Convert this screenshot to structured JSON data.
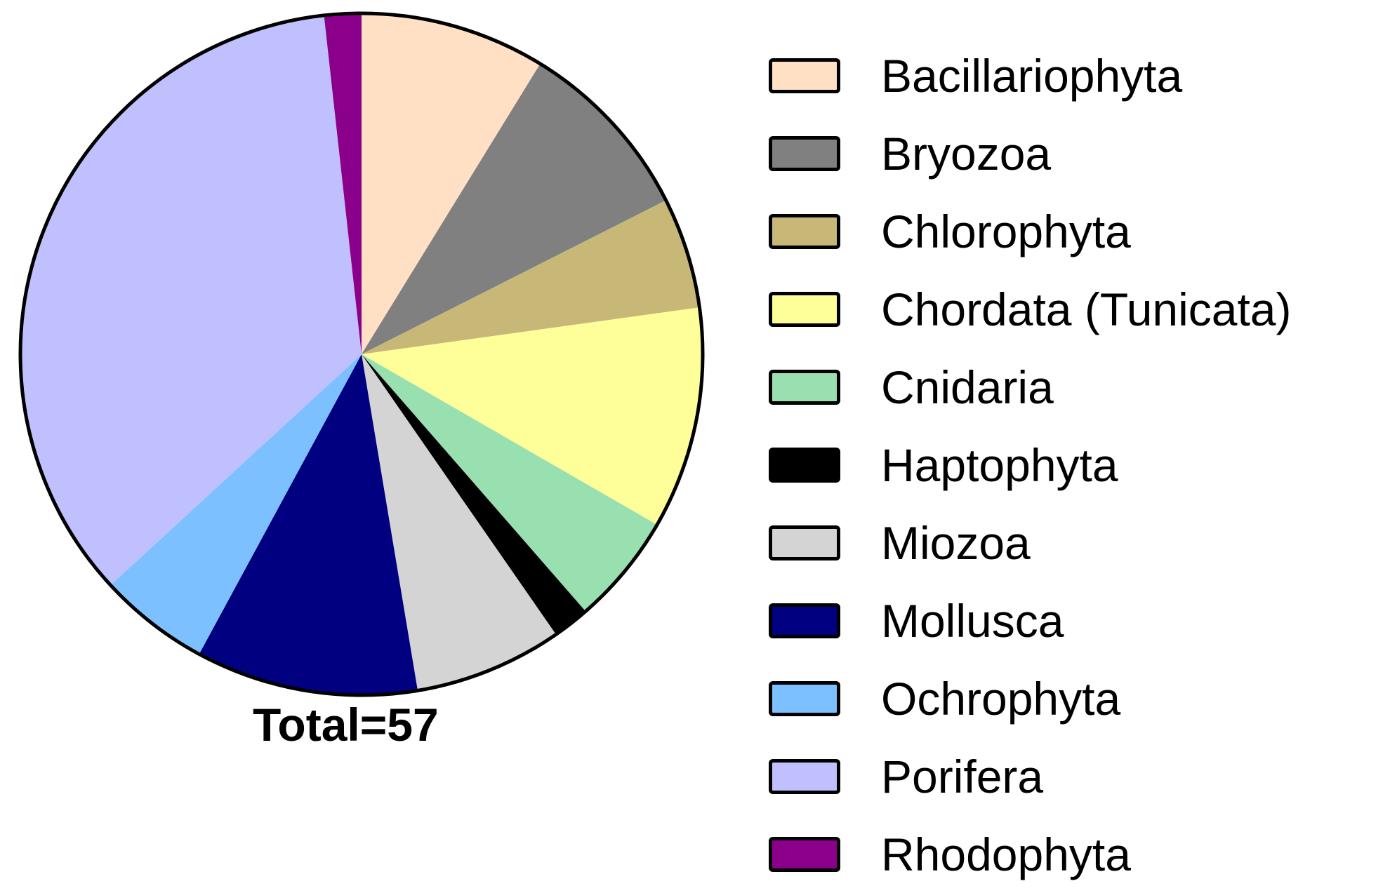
{
  "chart_data": {
    "type": "pie",
    "title": "",
    "total_label": "Total=57",
    "categories": [
      "Bacillariophyta",
      "Bryozoa",
      "Chlorophyta",
      "Chordata (Tunicata)",
      "Cnidaria",
      "Haptophyta",
      "Miozoa",
      "Mollusca",
      "Ochrophyta",
      "Porifera",
      "Rhodophyta"
    ],
    "values": [
      5,
      5,
      3,
      6,
      3,
      1,
      4,
      6,
      3,
      20,
      1
    ],
    "colors": [
      "#FFE0C4",
      "#808080",
      "#C8B878",
      "#FFFF99",
      "#99E0B0",
      "#000000",
      "#D4D4D4",
      "#000080",
      "#7CC0FF",
      "#C0C0FF",
      "#8B008B"
    ],
    "legend_position": "right",
    "start": "12 o'clock, clockwise"
  }
}
